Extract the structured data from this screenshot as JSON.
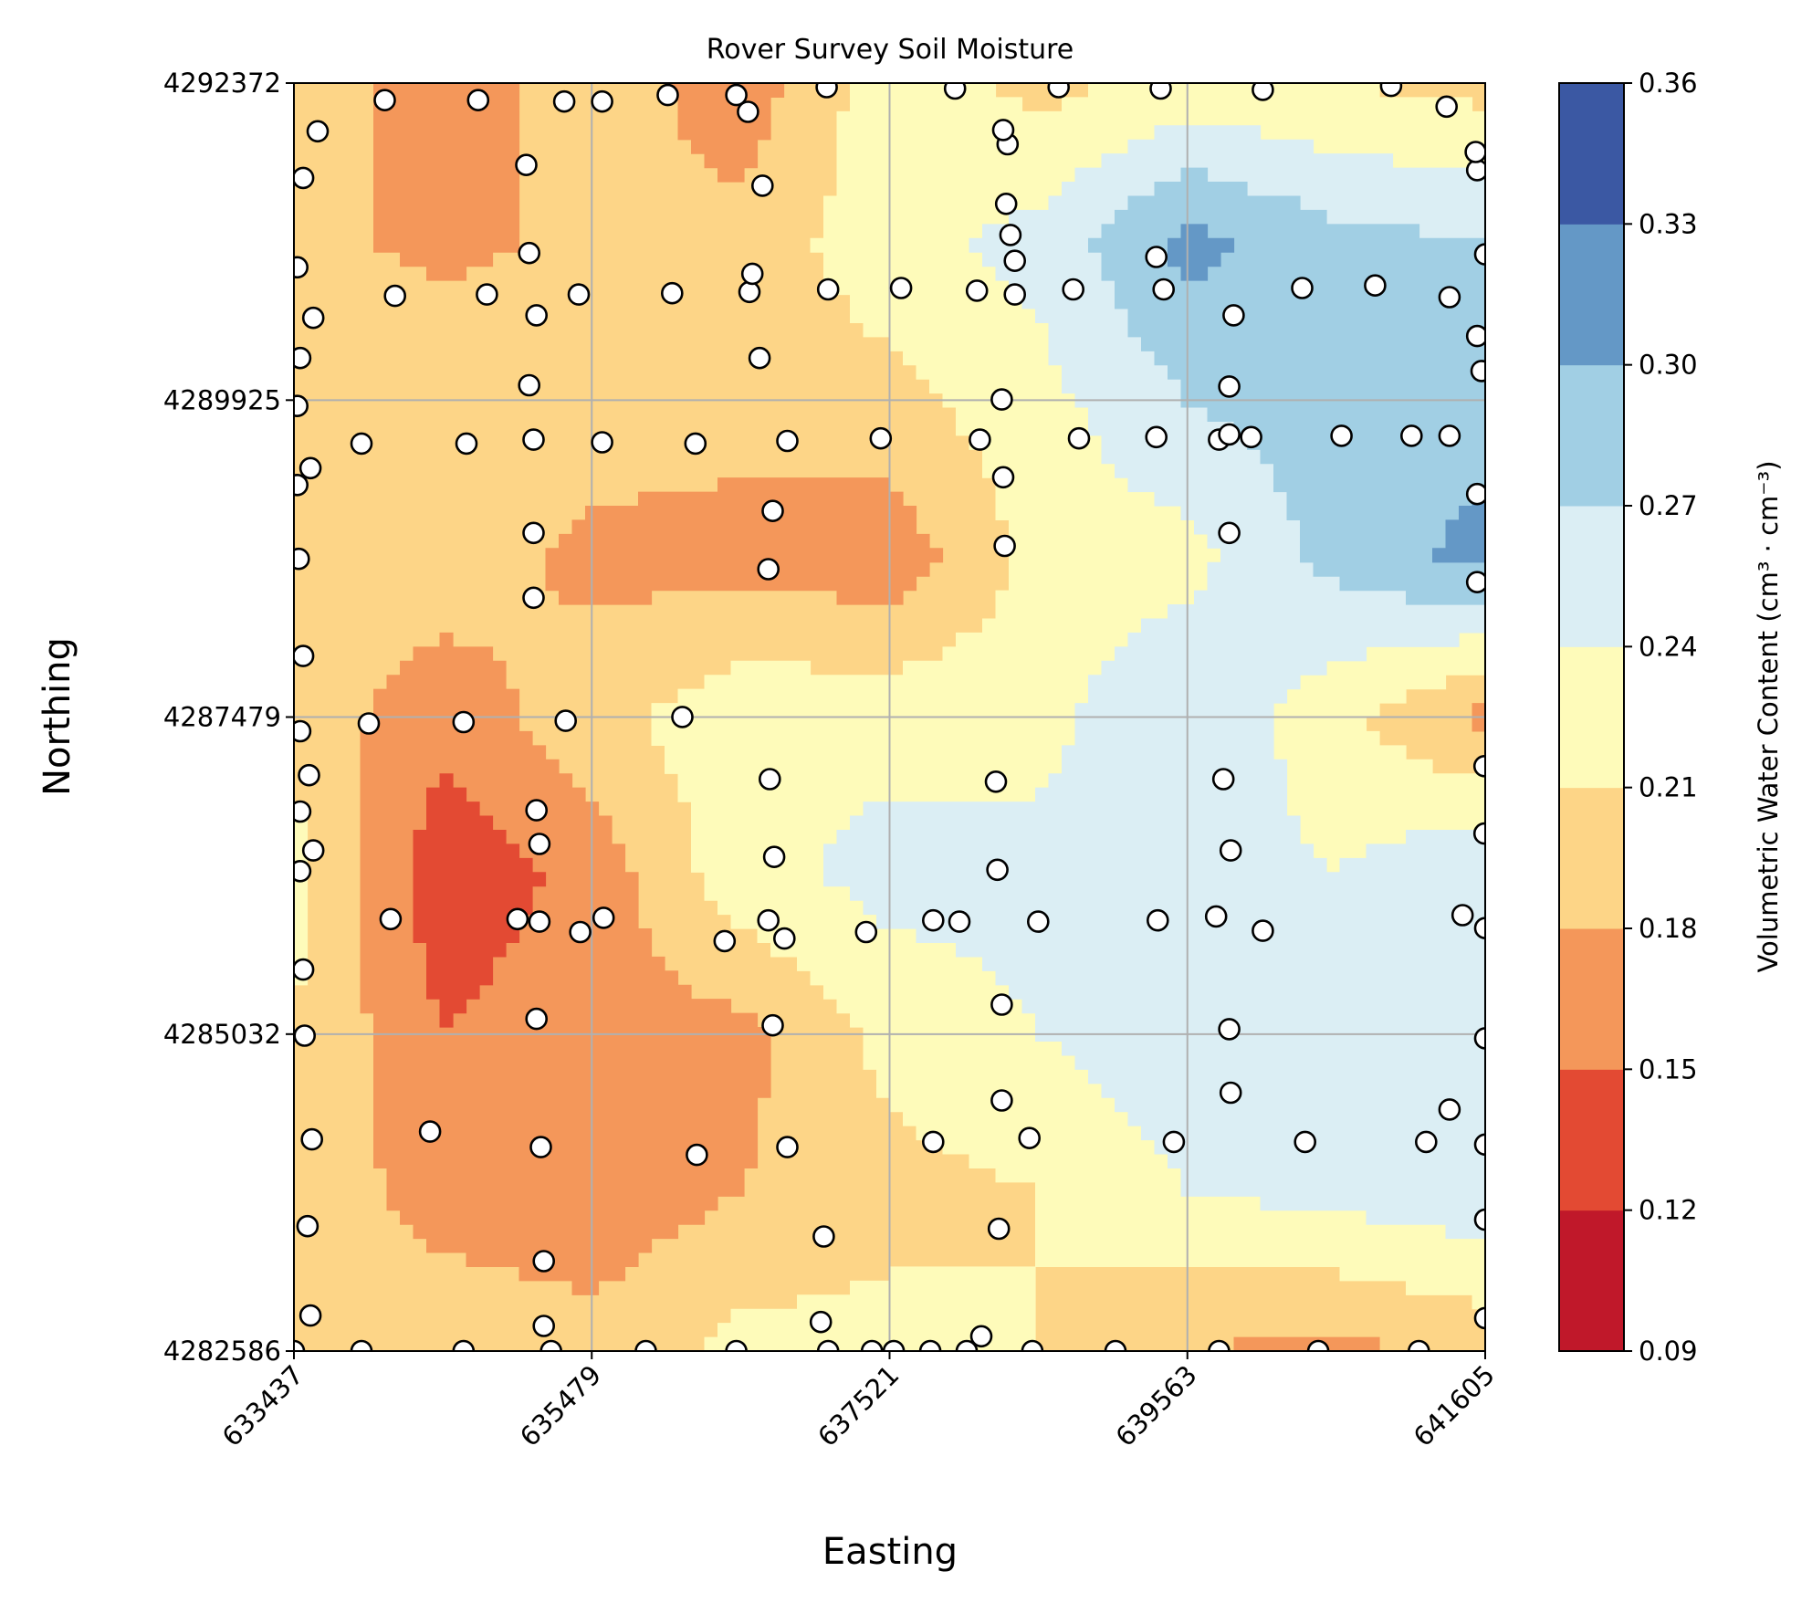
{
  "chart_data": {
    "type": "heatmap",
    "subtype": "filled-contour",
    "title": "Rover Survey Soil Moisture",
    "xlabel": "Easting",
    "ylabel": "Northing",
    "xlim": [
      633437,
      641605
    ],
    "ylim": [
      4282586,
      4292372
    ],
    "xticks": [
      "633437",
      "635479",
      "637521",
      "639563",
      "641605"
    ],
    "yticks": [
      "4282586",
      "4285032",
      "4287479",
      "4289925",
      "4292372"
    ],
    "grid": true,
    "colorbar": {
      "label": "Volumetric Water Content (cm³ · cm⁻³)",
      "levels": [
        0.09,
        0.12,
        0.15,
        0.18,
        0.21,
        0.24,
        0.27,
        0.3,
        0.33,
        0.36
      ],
      "tick_labels": [
        "0.09",
        "0.12",
        "0.15",
        "0.18",
        "0.21",
        "0.24",
        "0.27",
        "0.30",
        "0.33",
        "0.36"
      ],
      "colors": [
        "#c0182a",
        "#e34a33",
        "#f4975a",
        "#fdd587",
        "#fefbba",
        "#dbeef4",
        "#a1cfe4",
        "#6498c6",
        "#3b58a3"
      ]
    },
    "moisture_grid": {
      "x": [
        633437,
        634458,
        635479,
        636500,
        637521,
        638542,
        639563,
        640584,
        641605
      ],
      "y": [
        4282586,
        4283809,
        4285032,
        4286256,
        4287479,
        4288702,
        4289925,
        4291149,
        4292372
      ],
      "z": [
        [
          0.21,
          0.21,
          0.19,
          0.22,
          0.22,
          0.21,
          0.18,
          0.17,
          0.19
        ],
        [
          0.21,
          0.16,
          0.16,
          0.18,
          0.2,
          0.21,
          0.24,
          0.25,
          0.26
        ],
        [
          0.21,
          0.15,
          0.17,
          0.17,
          0.22,
          0.24,
          0.26,
          0.25,
          0.26
        ],
        [
          0.22,
          0.13,
          0.16,
          0.23,
          0.25,
          0.25,
          0.25,
          0.24,
          0.27
        ],
        [
          0.2,
          0.16,
          0.2,
          0.23,
          0.23,
          0.23,
          0.27,
          0.22,
          0.17
        ],
        [
          0.19,
          0.2,
          0.17,
          0.17,
          0.16,
          0.22,
          0.23,
          0.28,
          0.31
        ],
        [
          0.2,
          0.21,
          0.2,
          0.19,
          0.2,
          0.23,
          0.27,
          0.29,
          0.29
        ],
        [
          0.19,
          0.17,
          0.19,
          0.19,
          0.23,
          0.25,
          0.31,
          0.28,
          0.27
        ],
        [
          0.2,
          0.16,
          0.2,
          0.16,
          0.23,
          0.2,
          0.22,
          0.21,
          0.2
        ]
      ]
    },
    "sample_points": [
      [
        633437,
        4282586
      ],
      [
        633900,
        4282586
      ],
      [
        634600,
        4282586
      ],
      [
        635200,
        4282586
      ],
      [
        635850,
        4282586
      ],
      [
        636470,
        4282586
      ],
      [
        637100,
        4282586
      ],
      [
        637400,
        4282586
      ],
      [
        637550,
        4282586
      ],
      [
        637800,
        4282586
      ],
      [
        638050,
        4282586
      ],
      [
        638500,
        4282586
      ],
      [
        639070,
        4282586
      ],
      [
        639780,
        4282586
      ],
      [
        640460,
        4282586
      ],
      [
        641150,
        4282586
      ],
      [
        633550,
        4282860
      ],
      [
        635150,
        4282780
      ],
      [
        637050,
        4282810
      ],
      [
        638150,
        4282700
      ],
      [
        641605,
        4282840
      ],
      [
        633530,
        4283550
      ],
      [
        635150,
        4283280
      ],
      [
        637070,
        4283470
      ],
      [
        638270,
        4283530
      ],
      [
        641605,
        4283600
      ],
      [
        633560,
        4284220
      ],
      [
        635130,
        4284160
      ],
      [
        636200,
        4284100
      ],
      [
        636820,
        4284160
      ],
      [
        637820,
        4284200
      ],
      [
        638480,
        4284230
      ],
      [
        639470,
        4284200
      ],
      [
        640370,
        4284200
      ],
      [
        641200,
        4284200
      ],
      [
        641605,
        4284180
      ],
      [
        634370,
        4284280
      ],
      [
        638290,
        4284520
      ],
      [
        639860,
        4284580
      ],
      [
        641360,
        4284450
      ],
      [
        633510,
        4285020
      ],
      [
        635100,
        4285150
      ],
      [
        636720,
        4285100
      ],
      [
        638290,
        4285260
      ],
      [
        639850,
        4285070
      ],
      [
        641605,
        4285000
      ],
      [
        633500,
        4285530
      ],
      [
        634970,
        4285920
      ],
      [
        635400,
        4285820
      ],
      [
        636390,
        4285750
      ],
      [
        636800,
        4285770
      ],
      [
        637360,
        4285820
      ],
      [
        638000,
        4285900
      ],
      [
        638540,
        4285900
      ],
      [
        639360,
        4285910
      ],
      [
        640080,
        4285830
      ],
      [
        641450,
        4285950
      ],
      [
        634100,
        4285920
      ],
      [
        635120,
        4285900
      ],
      [
        635560,
        4285930
      ],
      [
        636690,
        4285910
      ],
      [
        637820,
        4285910
      ],
      [
        639760,
        4285940
      ],
      [
        641605,
        4285850
      ],
      [
        633480,
        4286290
      ],
      [
        633570,
        4286450
      ],
      [
        635120,
        4286500
      ],
      [
        636730,
        4286400
      ],
      [
        638260,
        4286300
      ],
      [
        639860,
        4286450
      ],
      [
        641600,
        4286580
      ],
      [
        633480,
        4286750
      ],
      [
        633540,
        4287030
      ],
      [
        635100,
        4286760
      ],
      [
        636700,
        4287000
      ],
      [
        638250,
        4286980
      ],
      [
        639810,
        4287000
      ],
      [
        641600,
        4287100
      ],
      [
        633950,
        4287430
      ],
      [
        634600,
        4287440
      ],
      [
        635300,
        4287450
      ],
      [
        636100,
        4287480
      ],
      [
        633480,
        4287370
      ],
      [
        633500,
        4287950
      ],
      [
        635080,
        4288400
      ],
      [
        636690,
        4288620
      ],
      [
        638310,
        4288800
      ],
      [
        639850,
        4288900
      ],
      [
        641550,
        4288520
      ],
      [
        633470,
        4288700
      ],
      [
        635080,
        4288900
      ],
      [
        636720,
        4289070
      ],
      [
        638300,
        4289330
      ],
      [
        639780,
        4289620
      ],
      [
        641550,
        4289200
      ],
      [
        633460,
        4289270
      ],
      [
        633550,
        4289400
      ],
      [
        633900,
        4289590
      ],
      [
        634620,
        4289590
      ],
      [
        635080,
        4289620
      ],
      [
        635550,
        4289600
      ],
      [
        636190,
        4289590
      ],
      [
        636820,
        4289610
      ],
      [
        637460,
        4289630
      ],
      [
        638140,
        4289620
      ],
      [
        638820,
        4289630
      ],
      [
        639350,
        4289640
      ],
      [
        639850,
        4289660
      ],
      [
        640000,
        4289640
      ],
      [
        640620,
        4289650
      ],
      [
        641100,
        4289650
      ],
      [
        641360,
        4289650
      ],
      [
        633460,
        4289880
      ],
      [
        635050,
        4290040
      ],
      [
        636630,
        4290250
      ],
      [
        638290,
        4289930
      ],
      [
        639850,
        4290030
      ],
      [
        641580,
        4290150
      ],
      [
        633480,
        4290250
      ],
      [
        633570,
        4290560
      ],
      [
        634130,
        4290730
      ],
      [
        634760,
        4290740
      ],
      [
        635100,
        4290580
      ],
      [
        635390,
        4290740
      ],
      [
        636030,
        4290750
      ],
      [
        636560,
        4290760
      ],
      [
        637100,
        4290780
      ],
      [
        637600,
        4290790
      ],
      [
        638120,
        4290770
      ],
      [
        638380,
        4290740
      ],
      [
        638780,
        4290780
      ],
      [
        639400,
        4290780
      ],
      [
        639880,
        4290580
      ],
      [
        640350,
        4290790
      ],
      [
        640850,
        4290810
      ],
      [
        641360,
        4290720
      ],
      [
        641550,
        4290420
      ],
      [
        633460,
        4290950
      ],
      [
        635050,
        4291060
      ],
      [
        636580,
        4290900
      ],
      [
        638380,
        4291000
      ],
      [
        638350,
        4291200
      ],
      [
        639350,
        4291030
      ],
      [
        641605,
        4291050
      ],
      [
        633500,
        4291640
      ],
      [
        635030,
        4291740
      ],
      [
        636650,
        4291580
      ],
      [
        638320,
        4291440
      ],
      [
        638330,
        4291900
      ],
      [
        641550,
        4291700
      ],
      [
        633600,
        4292000
      ],
      [
        634060,
        4292240
      ],
      [
        634700,
        4292240
      ],
      [
        635290,
        4292230
      ],
      [
        635550,
        4292230
      ],
      [
        636000,
        4292280
      ],
      [
        636470,
        4292280
      ],
      [
        636550,
        4292150
      ],
      [
        637090,
        4292340
      ],
      [
        637970,
        4292330
      ],
      [
        638680,
        4292340
      ],
      [
        639380,
        4292330
      ],
      [
        640080,
        4292320
      ],
      [
        640960,
        4292350
      ],
      [
        641340,
        4292190
      ],
      [
        641540,
        4291840
      ],
      [
        638300,
        4292010
      ]
    ]
  }
}
